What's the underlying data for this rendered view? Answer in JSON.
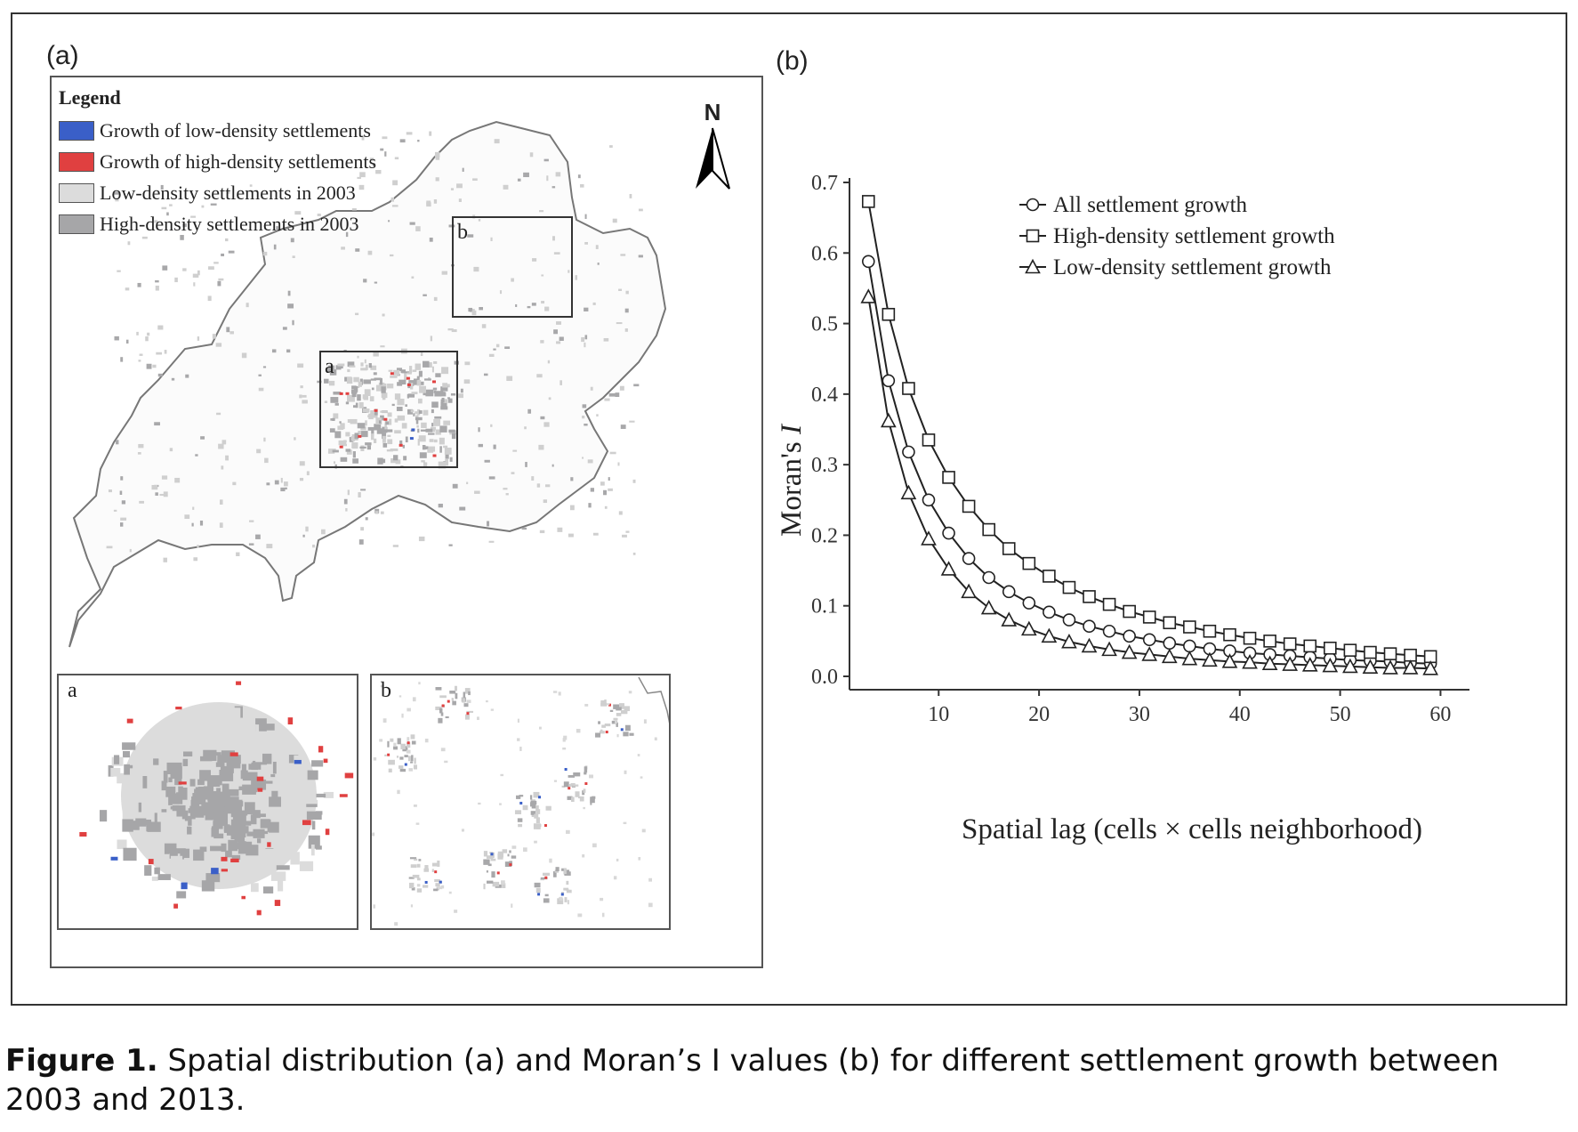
{
  "panel_a": {
    "label": "(a)",
    "legend": {
      "title": "Legend",
      "items": [
        {
          "label": "Growth of low-density settlements",
          "color": "#3a5fc8"
        },
        {
          "label": "Growth of high-density settlements",
          "color": "#e04040"
        },
        {
          "label": "Low-density settlements in 2003",
          "color": "#dcdcdc"
        },
        {
          "label": "High-density settlements in 2003",
          "color": "#a6a6a8"
        }
      ]
    },
    "north_label": "N",
    "box_a_label": "a",
    "box_b_label": "b",
    "inset_a_label": "a",
    "inset_b_label": "b"
  },
  "panel_b": {
    "label": "(b)"
  },
  "chart_data": {
    "type": "line",
    "xlabel": "Spatial lag (cells × cells neighborhood)",
    "ylabel": "Moran's I",
    "xlim": [
      2,
      62
    ],
    "ylim": [
      0,
      0.7
    ],
    "xticks": [
      "10",
      "20",
      "30",
      "40",
      "50",
      "60"
    ],
    "yticks": [
      "0.0",
      "0.1",
      "0.2",
      "0.3",
      "0.4",
      "0.5",
      "0.6",
      "0.7"
    ],
    "legend_position": "top-right",
    "x": [
      3,
      5,
      7,
      9,
      11,
      13,
      15,
      17,
      19,
      21,
      23,
      25,
      27,
      29,
      31,
      33,
      35,
      37,
      39,
      41,
      43,
      45,
      47,
      49,
      51,
      53,
      55,
      57,
      59
    ],
    "series": [
      {
        "name": "All settlement growth",
        "marker": "circle",
        "values": [
          0.588,
          0.419,
          0.318,
          0.25,
          0.203,
          0.167,
          0.14,
          0.12,
          0.104,
          0.091,
          0.08,
          0.071,
          0.064,
          0.057,
          0.052,
          0.047,
          0.043,
          0.039,
          0.036,
          0.033,
          0.031,
          0.029,
          0.027,
          0.025,
          0.023,
          0.022,
          0.021,
          0.019,
          0.018
        ]
      },
      {
        "name": "High-density settlement growth",
        "marker": "square",
        "values": [
          0.673,
          0.513,
          0.408,
          0.335,
          0.282,
          0.241,
          0.208,
          0.181,
          0.16,
          0.142,
          0.126,
          0.113,
          0.102,
          0.092,
          0.084,
          0.076,
          0.07,
          0.064,
          0.059,
          0.054,
          0.05,
          0.046,
          0.043,
          0.04,
          0.037,
          0.034,
          0.032,
          0.03,
          0.028
        ]
      },
      {
        "name": "Low-density settlement growth",
        "marker": "triangle",
        "values": [
          0.538,
          0.362,
          0.26,
          0.195,
          0.152,
          0.12,
          0.097,
          0.08,
          0.067,
          0.057,
          0.049,
          0.043,
          0.038,
          0.034,
          0.031,
          0.028,
          0.025,
          0.023,
          0.021,
          0.02,
          0.018,
          0.017,
          0.016,
          0.015,
          0.014,
          0.013,
          0.012,
          0.012,
          0.011
        ]
      }
    ]
  },
  "caption": {
    "bold": "Figure 1.",
    "text": "Spatial distribution (a) and Moran’s I values (b) for different settlement growth between 2003 and 2013."
  }
}
